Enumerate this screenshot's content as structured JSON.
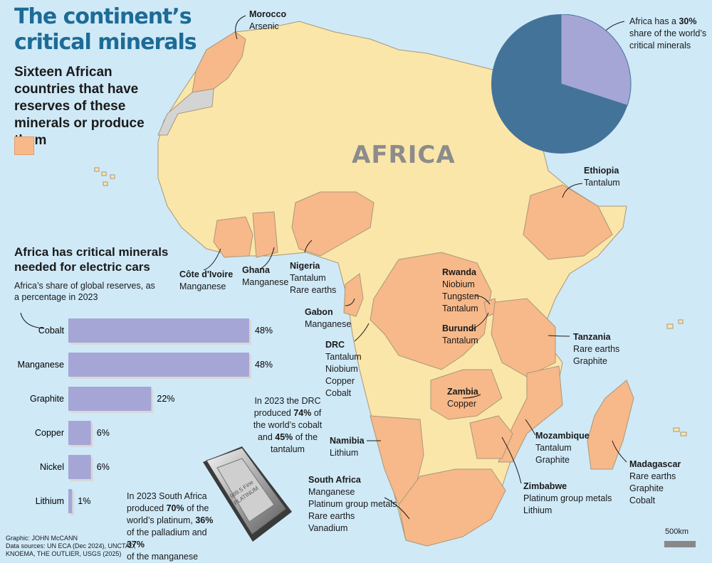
{
  "title": "The continent’s critical minerals",
  "subtitle": "Sixteen African countries that have reserves of these minerals or produce them",
  "map_label": "AFRICA",
  "colors": {
    "sea": "#cfe9f7",
    "land": "#fbe6a9",
    "highlight": "#f7b98a",
    "border": "#b8a98a",
    "pie_dark": "#44739a",
    "pie_light": "#a6a6d6",
    "bar": "#a6a6d6",
    "title": "#1d6b96"
  },
  "pie": {
    "note_prefix": "Africa has a ",
    "note_value": "30%",
    "note_suffix": " share of the world’s critical minerals",
    "africa_share": 30
  },
  "countries": [
    {
      "name": "Morocco",
      "minerals": [
        "Arsenic"
      ]
    },
    {
      "name": "Ethiopia",
      "minerals": [
        "Tantalum"
      ]
    },
    {
      "name": "Côte d'Ivoire",
      "minerals": [
        "Manganese"
      ]
    },
    {
      "name": "Ghana",
      "minerals": [
        "Manganese"
      ]
    },
    {
      "name": "Nigeria",
      "minerals": [
        "Tantalum",
        "Rare earths"
      ]
    },
    {
      "name": "Rwanda",
      "minerals": [
        "Niobium",
        "Tungsten",
        "Tantalum"
      ]
    },
    {
      "name": "Gabon",
      "minerals": [
        "Manganese"
      ]
    },
    {
      "name": "Burundi",
      "minerals": [
        "Tantalum"
      ]
    },
    {
      "name": "DRC",
      "minerals": [
        "Tantalum",
        "Niobium",
        "Copper",
        "Cobalt"
      ]
    },
    {
      "name": "Tanzania",
      "minerals": [
        "Rare earths",
        "Graphite"
      ]
    },
    {
      "name": "Zambia",
      "minerals": [
        "Copper"
      ]
    },
    {
      "name": "Namibia",
      "minerals": [
        "Lithium"
      ]
    },
    {
      "name": "Mozambique",
      "minerals": [
        "Tantalum",
        "Graphite"
      ]
    },
    {
      "name": "Madagascar",
      "minerals": [
        "Rare earths",
        "Graphite",
        "Cobalt"
      ]
    },
    {
      "name": "Zimbabwe",
      "minerals": [
        "Platinum group metals",
        "Lithium"
      ]
    },
    {
      "name": "South Africa",
      "minerals": [
        "Manganese",
        "Platinum group metals",
        "Rare earths",
        "Vanadium"
      ]
    }
  ],
  "chart_title": "Africa has critical minerals needed for electric cars",
  "chart_subtitle": "Africa’s share of global reserves, as a percentage in 2023",
  "chart_data": {
    "type": "bar",
    "title": "Africa has critical minerals needed for electric cars",
    "subtitle": "Africa’s share of global reserves, as a percentage in 2023",
    "orientation": "horizontal",
    "categories": [
      "Cobalt",
      "Manganese",
      "Graphite",
      "Copper",
      "Nickel",
      "Lithium"
    ],
    "values": [
      48,
      48,
      22,
      6,
      6,
      1
    ],
    "value_labels": [
      "48%",
      "48%",
      "22%",
      "6%",
      "6%",
      "1%"
    ],
    "xlim": [
      0,
      48
    ]
  },
  "drc_note": {
    "l1": "In 2023 the DRC",
    "l2a": "produced ",
    "l2b": "74%",
    "l2c": " of",
    "l3": "the world’s cobalt",
    "l4a": "and ",
    "l4b": "45%",
    "l4c": " of the",
    "l5": "tantalum"
  },
  "sa_note": {
    "l1": "In 2023 South Africa",
    "l2a": "produced ",
    "l2b": "70%",
    "l2c": " of the",
    "l3a": "world’s platinum, ",
    "l3b": "36%",
    "l4": "of the palladium and ",
    "l4b": "37%",
    "l5": "of the manganese"
  },
  "ingot": {
    "line1": "999.5 Fine",
    "line2": "PLATINUM"
  },
  "credits": [
    "Graphic: JOHN McCANN",
    "Data sources: UN ECA (Dec 2024), UNCTAD,",
    "KNOEMA, THE OUTLIER, USGS (2025)"
  ],
  "scale": {
    "label": "500km"
  }
}
